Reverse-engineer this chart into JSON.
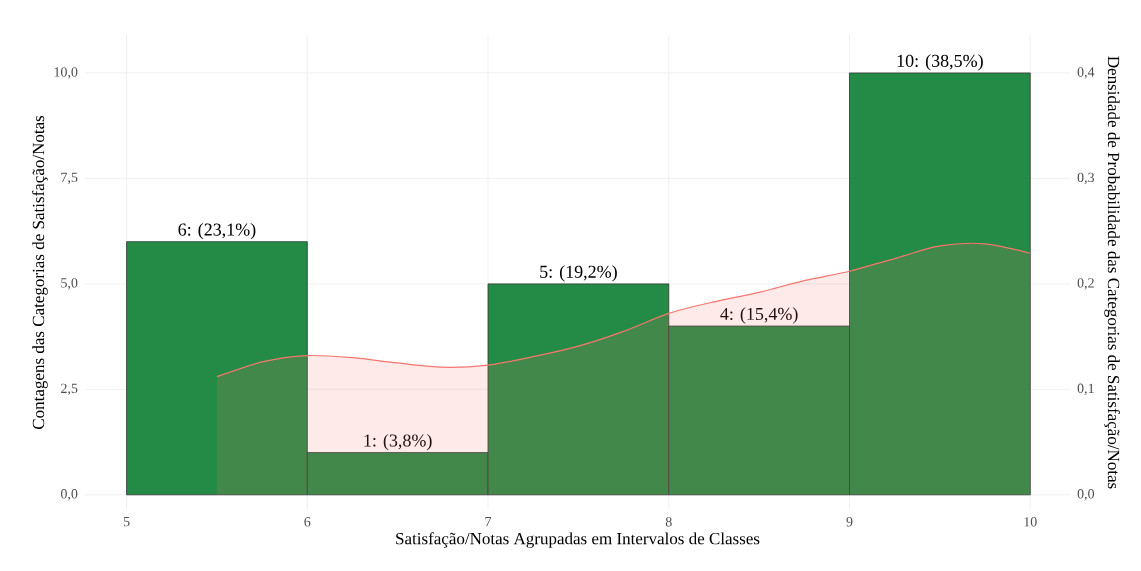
{
  "chart_data": {
    "type": "histogram",
    "xlabel": "Satisfação/Notas Agrupadas em Intervalos de Classes",
    "ylabel": "Contagens das Categorias de Satisfação/Notas",
    "y2label": "Densidade de Probabilidade das Categorias de Satisfação/Notas",
    "bins": [
      5,
      6,
      7,
      8,
      9,
      10
    ],
    "values": [
      6,
      1,
      5,
      4,
      10
    ],
    "color": "#238b45",
    "value_labels": [
      "6: (23,1%)",
      "1: (3,8%)",
      "5: (19,2%)",
      "4: (15,4%)",
      "10: (38,5%)"
    ],
    "series": [
      {
        "type": "area",
        "axis": "y2",
        "color": "#f8766d",
        "x": [
          5.5,
          5.75,
          6,
          6.25,
          6.5,
          6.75,
          7,
          7.25,
          7.5,
          7.75,
          8,
          8.25,
          8.5,
          8.75,
          9,
          9.25,
          9.5,
          9.75,
          10
        ],
        "values": [
          0.112,
          0.126,
          0.132,
          0.13,
          0.125,
          0.121,
          0.123,
          0.131,
          0.141,
          0.155,
          0.172,
          0.183,
          0.192,
          0.203,
          0.212,
          0.224,
          0.236,
          0.238,
          0.229
        ]
      }
    ],
    "xlim": [
      4.77,
      10.22
    ],
    "ylim": [
      -0.36,
      10.9
    ],
    "y2lim": [
      -0.0144,
      0.436
    ],
    "xticks": [
      5,
      6,
      7,
      8,
      9,
      10
    ],
    "yticks": [
      {
        "value": 0,
        "label": "0,0"
      },
      {
        "value": 2.5,
        "label": "2,5"
      },
      {
        "value": 5,
        "label": "5,0"
      },
      {
        "value": 7.5,
        "label": "7,5"
      },
      {
        "value": 10,
        "label": "10,0"
      }
    ],
    "y2ticks": [
      {
        "value": 0,
        "label": "0,0"
      },
      {
        "value": 0.1,
        "label": "0,1"
      },
      {
        "value": 0.2,
        "label": "0,2"
      },
      {
        "value": 0.3,
        "label": "0,3"
      },
      {
        "value": 0.4,
        "label": "0,4"
      }
    ],
    "grid": true
  }
}
